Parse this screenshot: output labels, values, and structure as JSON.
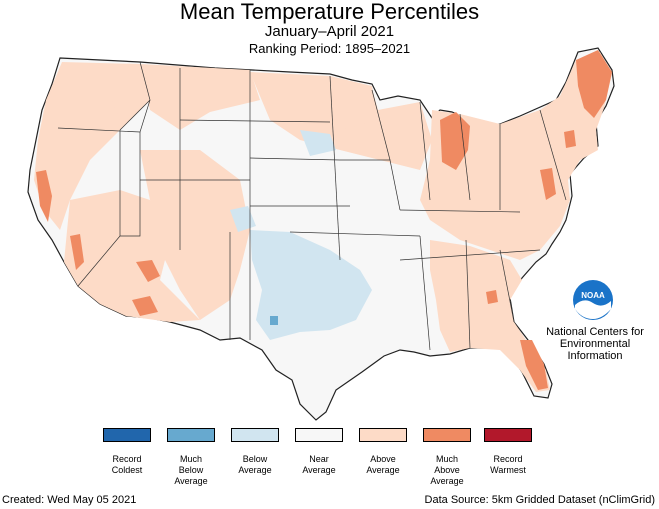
{
  "header": {
    "title": "Mean Temperature Percentiles",
    "subtitle": "January–April 2021",
    "ranking_period": "Ranking Period: 1895–2021"
  },
  "organization": {
    "line1": "National Centers for",
    "line2": "Environmental",
    "line3": "Information",
    "logo_text": "NOAA"
  },
  "legend": [
    {
      "line1": "Record",
      "line2": "Coldest",
      "line3": "",
      "color": "#2166ac"
    },
    {
      "line1": "Much",
      "line2": "Below",
      "line3": "Average",
      "color": "#67a9cf"
    },
    {
      "line1": "Below",
      "line2": "Average",
      "line3": "",
      "color": "#d1e5f0"
    },
    {
      "line1": "Near",
      "line2": "Average",
      "line3": "",
      "color": "#f7f7f7"
    },
    {
      "line1": "Above",
      "line2": "Average",
      "line3": "",
      "color": "#fddbc7"
    },
    {
      "line1": "Much",
      "line2": "Above",
      "line3": "Average",
      "color": "#ef8a62"
    },
    {
      "line1": "Record",
      "line2": "Warmest",
      "line3": "",
      "color": "#b2182b"
    }
  ],
  "footer": {
    "created": "Created: Wed May 05 2021",
    "source": "Data Source: 5km Gridded Dataset (nClimGrid)"
  }
}
